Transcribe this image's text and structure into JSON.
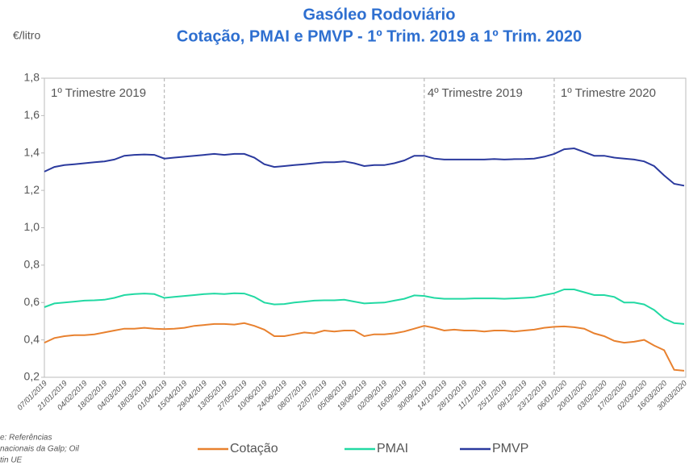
{
  "chart_data": {
    "type": "line",
    "title": [
      "Gasóleo Rodoviário",
      "Cotação, PMAI e PMVP - 1º Trim. 2019 a 1º Trim. 2020"
    ],
    "y_label": "€/litro",
    "annotations": [
      "1º Trimestre 2019",
      "4º Trimestre 2019",
      "1º Trimestre 2020"
    ],
    "source": [
      "e: Referências",
      "nacionais da Galp; Oil",
      "tin UE"
    ],
    "categories": [
      "07/01/2019",
      null,
      "21/01/2019",
      null,
      "04/02/2019",
      null,
      "18/02/2019",
      null,
      "04/03/2019",
      null,
      "18/03/2019",
      null,
      "01/04/2019",
      null,
      "15/04/2019",
      null,
      "29/04/2019",
      null,
      "13/05/2019",
      null,
      "27/05/2019",
      null,
      "10/06/2019",
      null,
      "24/06/2019",
      null,
      "08/07/2019",
      null,
      "22/07/2019",
      null,
      "05/08/2019",
      null,
      "19/08/2019",
      null,
      "02/09/2019",
      null,
      "16/09/2019",
      null,
      "30/09/2019",
      null,
      "14/10/2019",
      null,
      "28/10/2019",
      null,
      "11/11/2019",
      null,
      "25/11/2019",
      null,
      "09/12/2019",
      null,
      "23/12/2019",
      null,
      "06/01/2020",
      null,
      "20/01/2020",
      null,
      "03/02/2020",
      null,
      "17/02/2020",
      null,
      "02/03/2020",
      null,
      "16/03/2020",
      null,
      "30/03/2020"
    ],
    "series": [
      {
        "name": "Cotação",
        "color": "#e8812f",
        "values": [
          0.385,
          0.41,
          0.42,
          0.425,
          0.425,
          0.43,
          0.44,
          0.45,
          0.46,
          0.46,
          0.465,
          0.46,
          0.458,
          0.46,
          0.465,
          0.475,
          0.48,
          0.485,
          0.485,
          0.482,
          0.49,
          0.475,
          0.455,
          0.42,
          0.42,
          0.43,
          0.44,
          0.435,
          0.45,
          0.445,
          0.45,
          0.45,
          0.42,
          0.43,
          0.43,
          0.435,
          0.445,
          0.46,
          0.475,
          0.465,
          0.45,
          0.455,
          0.45,
          0.45,
          0.445,
          0.45,
          0.45,
          0.445,
          0.45,
          0.455,
          0.465,
          0.47,
          0.472,
          0.468,
          0.46,
          0.435,
          0.42,
          0.395,
          0.385,
          0.39,
          0.4,
          0.37,
          0.345,
          0.24,
          0.235
        ]
      },
      {
        "name": "PMAI",
        "color": "#22d9a3",
        "values": [
          0.575,
          0.595,
          0.6,
          0.605,
          0.61,
          0.612,
          0.615,
          0.625,
          0.64,
          0.645,
          0.648,
          0.645,
          0.625,
          0.63,
          0.635,
          0.64,
          0.645,
          0.648,
          0.645,
          0.65,
          0.648,
          0.63,
          0.6,
          0.59,
          0.592,
          0.6,
          0.605,
          0.61,
          0.612,
          0.612,
          0.615,
          0.605,
          0.595,
          0.598,
          0.6,
          0.61,
          0.62,
          0.638,
          0.635,
          0.625,
          0.62,
          0.62,
          0.62,
          0.622,
          0.622,
          0.622,
          0.62,
          0.622,
          0.625,
          0.628,
          0.64,
          0.65,
          0.67,
          0.67,
          0.655,
          0.64,
          0.64,
          0.63,
          0.6,
          0.6,
          0.59,
          0.56,
          0.515,
          0.49,
          0.485
        ]
      },
      {
        "name": "PMVP",
        "color": "#2b3a9e",
        "values": [
          1.3,
          1.325,
          1.335,
          1.34,
          1.345,
          1.35,
          1.355,
          1.365,
          1.385,
          1.39,
          1.392,
          1.39,
          1.37,
          1.375,
          1.38,
          1.385,
          1.39,
          1.395,
          1.39,
          1.395,
          1.395,
          1.375,
          1.34,
          1.325,
          1.33,
          1.335,
          1.34,
          1.345,
          1.35,
          1.35,
          1.355,
          1.345,
          1.33,
          1.335,
          1.335,
          1.345,
          1.36,
          1.385,
          1.385,
          1.37,
          1.365,
          1.365,
          1.365,
          1.365,
          1.365,
          1.368,
          1.365,
          1.367,
          1.368,
          1.37,
          1.38,
          1.395,
          1.42,
          1.425,
          1.405,
          1.385,
          1.385,
          1.375,
          1.37,
          1.365,
          1.355,
          1.33,
          1.28,
          1.235,
          1.225
        ]
      }
    ],
    "ylim": [
      0.2,
      1.8
    ],
    "yticks": [
      {
        "value": 0.2,
        "label": "0,2"
      },
      {
        "value": 0.4,
        "label": "0,4"
      },
      {
        "value": 0.6,
        "label": "0,6"
      },
      {
        "value": 0.8,
        "label": "0,8"
      },
      {
        "value": 1.0,
        "label": "1,0"
      },
      {
        "value": 1.2,
        "label": "1,2"
      },
      {
        "value": 1.4,
        "label": "1,4"
      },
      {
        "value": 1.6,
        "label": "1,6"
      },
      {
        "value": 1.8,
        "label": "1,8"
      }
    ],
    "grid": false,
    "legend": "bottom"
  }
}
